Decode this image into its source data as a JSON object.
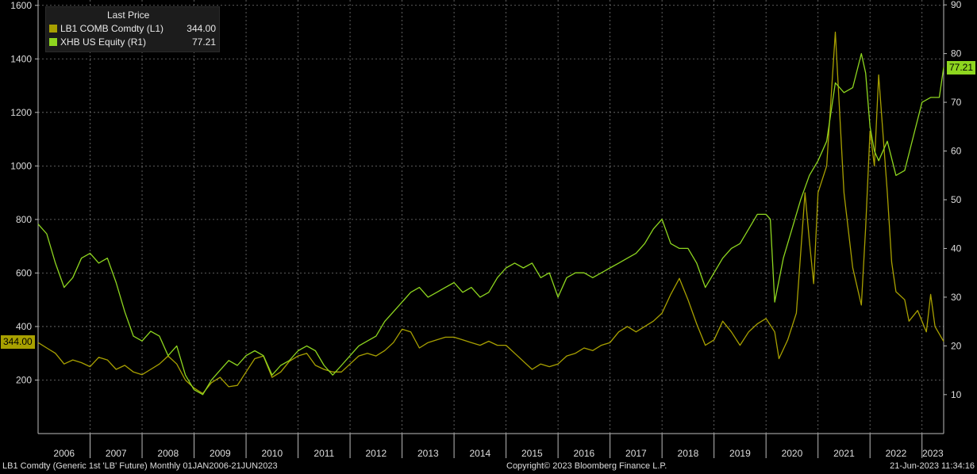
{
  "legend": {
    "header": "Last Price",
    "items": [
      {
        "name": "LB1 COMB Comdty  (L1)",
        "value": "344.00",
        "color": "#a8a000"
      },
      {
        "name": "XHB US Equity  (R1)",
        "value": "77.21",
        "color": "#8ed61f"
      }
    ]
  },
  "last_value_tags": {
    "left": "344.00",
    "right": "77.21"
  },
  "footer": {
    "left": "LB1 Comdty (Generic 1st 'LB' Future)  Monthly 01JAN2006-21JUN2023",
    "center": "Copyright© 2023 Bloomberg Finance L.P.",
    "right": "21-Jun-2023 11:34:16"
  },
  "chart_data": {
    "type": "line",
    "x_ticks": [
      "2006",
      "2007",
      "2008",
      "2009",
      "2010",
      "2011",
      "2012",
      "2013",
      "2014",
      "2015",
      "2016",
      "2017",
      "2018",
      "2019",
      "2020",
      "2021",
      "2022",
      "2023"
    ],
    "x_range": [
      "2006-01",
      "2023-06"
    ],
    "left_axis": {
      "ticks": [
        200,
        400,
        600,
        800,
        1000,
        1200,
        1400,
        1600
      ],
      "range": [
        0,
        1620
      ]
    },
    "right_axis": {
      "ticks": [
        10,
        20,
        30,
        40,
        50,
        60,
        70,
        80,
        90
      ],
      "range": [
        2,
        91
      ]
    },
    "grid": true,
    "legend_position": "top-left",
    "series": [
      {
        "name": "LB1 COMB Comdty",
        "axis": "left",
        "color": "#a8a000",
        "points": [
          [
            "2006-01",
            340
          ],
          [
            "2006-03",
            320
          ],
          [
            "2006-05",
            300
          ],
          [
            "2006-07",
            260
          ],
          [
            "2006-09",
            275
          ],
          [
            "2006-11",
            265
          ],
          [
            "2007-01",
            250
          ],
          [
            "2007-03",
            285
          ],
          [
            "2007-05",
            275
          ],
          [
            "2007-07",
            240
          ],
          [
            "2007-09",
            255
          ],
          [
            "2007-11",
            230
          ],
          [
            "2008-01",
            220
          ],
          [
            "2008-03",
            240
          ],
          [
            "2008-05",
            260
          ],
          [
            "2008-07",
            290
          ],
          [
            "2008-09",
            260
          ],
          [
            "2008-11",
            200
          ],
          [
            "2009-01",
            170
          ],
          [
            "2009-03",
            150
          ],
          [
            "2009-05",
            190
          ],
          [
            "2009-07",
            210
          ],
          [
            "2009-09",
            175
          ],
          [
            "2009-11",
            180
          ],
          [
            "2010-01",
            230
          ],
          [
            "2010-03",
            280
          ],
          [
            "2010-05",
            290
          ],
          [
            "2010-07",
            210
          ],
          [
            "2010-09",
            230
          ],
          [
            "2010-11",
            270
          ],
          [
            "2011-01",
            290
          ],
          [
            "2011-03",
            300
          ],
          [
            "2011-05",
            255
          ],
          [
            "2011-07",
            240
          ],
          [
            "2011-09",
            230
          ],
          [
            "2011-11",
            230
          ],
          [
            "2012-01",
            260
          ],
          [
            "2012-03",
            290
          ],
          [
            "2012-05",
            300
          ],
          [
            "2012-07",
            290
          ],
          [
            "2012-09",
            310
          ],
          [
            "2012-11",
            340
          ],
          [
            "2013-01",
            390
          ],
          [
            "2013-03",
            380
          ],
          [
            "2013-05",
            320
          ],
          [
            "2013-07",
            340
          ],
          [
            "2013-09",
            350
          ],
          [
            "2013-11",
            360
          ],
          [
            "2014-01",
            360
          ],
          [
            "2014-03",
            350
          ],
          [
            "2014-05",
            340
          ],
          [
            "2014-07",
            330
          ],
          [
            "2014-09",
            345
          ],
          [
            "2014-11",
            330
          ],
          [
            "2015-01",
            330
          ],
          [
            "2015-03",
            300
          ],
          [
            "2015-05",
            270
          ],
          [
            "2015-07",
            240
          ],
          [
            "2015-09",
            260
          ],
          [
            "2015-11",
            250
          ],
          [
            "2016-01",
            260
          ],
          [
            "2016-03",
            290
          ],
          [
            "2016-05",
            300
          ],
          [
            "2016-07",
            320
          ],
          [
            "2016-09",
            310
          ],
          [
            "2016-11",
            330
          ],
          [
            "2017-01",
            340
          ],
          [
            "2017-03",
            380
          ],
          [
            "2017-05",
            400
          ],
          [
            "2017-07",
            380
          ],
          [
            "2017-09",
            400
          ],
          [
            "2017-11",
            420
          ],
          [
            "2018-01",
            450
          ],
          [
            "2018-03",
            520
          ],
          [
            "2018-05",
            580
          ],
          [
            "2018-07",
            500
          ],
          [
            "2018-09",
            410
          ],
          [
            "2018-11",
            330
          ],
          [
            "2019-01",
            350
          ],
          [
            "2019-03",
            420
          ],
          [
            "2019-05",
            380
          ],
          [
            "2019-07",
            330
          ],
          [
            "2019-09",
            380
          ],
          [
            "2019-11",
            410
          ],
          [
            "2020-01",
            430
          ],
          [
            "2020-03",
            380
          ],
          [
            "2020-04",
            280
          ],
          [
            "2020-06",
            350
          ],
          [
            "2020-08",
            450
          ],
          [
            "2020-10",
            900
          ],
          [
            "2020-11",
            720
          ],
          [
            "2020-12",
            560
          ],
          [
            "2021-01",
            900
          ],
          [
            "2021-03",
            1000
          ],
          [
            "2021-05",
            1500
          ],
          [
            "2021-07",
            900
          ],
          [
            "2021-09",
            620
          ],
          [
            "2021-11",
            480
          ],
          [
            "2021-12",
            770
          ],
          [
            "2022-01",
            1130
          ],
          [
            "2022-02",
            1000
          ],
          [
            "2022-03",
            1340
          ],
          [
            "2022-05",
            900
          ],
          [
            "2022-06",
            640
          ],
          [
            "2022-07",
            530
          ],
          [
            "2022-09",
            500
          ],
          [
            "2022-10",
            420
          ],
          [
            "2022-12",
            460
          ],
          [
            "2023-02",
            380
          ],
          [
            "2023-03",
            520
          ],
          [
            "2023-04",
            400
          ],
          [
            "2023-06",
            344
          ]
        ]
      },
      {
        "name": "XHB US Equity",
        "axis": "right",
        "color": "#8ed61f",
        "points": [
          [
            "2006-01",
            45
          ],
          [
            "2006-03",
            43
          ],
          [
            "2006-05",
            37
          ],
          [
            "2006-07",
            32
          ],
          [
            "2006-09",
            34
          ],
          [
            "2006-11",
            38
          ],
          [
            "2007-01",
            39
          ],
          [
            "2007-03",
            37
          ],
          [
            "2007-05",
            38
          ],
          [
            "2007-07",
            33
          ],
          [
            "2007-09",
            27
          ],
          [
            "2007-11",
            22
          ],
          [
            "2008-01",
            21
          ],
          [
            "2008-03",
            23
          ],
          [
            "2008-05",
            22
          ],
          [
            "2008-07",
            18
          ],
          [
            "2008-09",
            20
          ],
          [
            "2008-11",
            14
          ],
          [
            "2009-01",
            11
          ],
          [
            "2009-03",
            10
          ],
          [
            "2009-05",
            13
          ],
          [
            "2009-07",
            15
          ],
          [
            "2009-09",
            17
          ],
          [
            "2009-11",
            16
          ],
          [
            "2010-01",
            18
          ],
          [
            "2010-03",
            19
          ],
          [
            "2010-05",
            18
          ],
          [
            "2010-07",
            14
          ],
          [
            "2010-09",
            16
          ],
          [
            "2010-11",
            17
          ],
          [
            "2011-01",
            19
          ],
          [
            "2011-03",
            20
          ],
          [
            "2011-05",
            19
          ],
          [
            "2011-07",
            16
          ],
          [
            "2011-09",
            14
          ],
          [
            "2011-11",
            16
          ],
          [
            "2012-01",
            18
          ],
          [
            "2012-03",
            20
          ],
          [
            "2012-05",
            21
          ],
          [
            "2012-07",
            22
          ],
          [
            "2012-09",
            25
          ],
          [
            "2012-11",
            27
          ],
          [
            "2013-01",
            29
          ],
          [
            "2013-03",
            31
          ],
          [
            "2013-05",
            32
          ],
          [
            "2013-07",
            30
          ],
          [
            "2013-09",
            31
          ],
          [
            "2013-11",
            32
          ],
          [
            "2014-01",
            33
          ],
          [
            "2014-03",
            31
          ],
          [
            "2014-05",
            32
          ],
          [
            "2014-07",
            30
          ],
          [
            "2014-09",
            31
          ],
          [
            "2014-11",
            34
          ],
          [
            "2015-01",
            36
          ],
          [
            "2015-03",
            37
          ],
          [
            "2015-05",
            36
          ],
          [
            "2015-07",
            37
          ],
          [
            "2015-09",
            34
          ],
          [
            "2015-11",
            35
          ],
          [
            "2016-01",
            30
          ],
          [
            "2016-03",
            34
          ],
          [
            "2016-05",
            35
          ],
          [
            "2016-07",
            35
          ],
          [
            "2016-09",
            34
          ],
          [
            "2016-11",
            35
          ],
          [
            "2017-01",
            36
          ],
          [
            "2017-03",
            37
          ],
          [
            "2017-05",
            38
          ],
          [
            "2017-07",
            39
          ],
          [
            "2017-09",
            41
          ],
          [
            "2017-11",
            44
          ],
          [
            "2018-01",
            46
          ],
          [
            "2018-03",
            41
          ],
          [
            "2018-05",
            40
          ],
          [
            "2018-07",
            40
          ],
          [
            "2018-09",
            37
          ],
          [
            "2018-11",
            32
          ],
          [
            "2019-01",
            35
          ],
          [
            "2019-03",
            38
          ],
          [
            "2019-05",
            40
          ],
          [
            "2019-07",
            41
          ],
          [
            "2019-09",
            44
          ],
          [
            "2019-11",
            47
          ],
          [
            "2020-01",
            47
          ],
          [
            "2020-02",
            46
          ],
          [
            "2020-03",
            29
          ],
          [
            "2020-05",
            38
          ],
          [
            "2020-07",
            44
          ],
          [
            "2020-09",
            50
          ],
          [
            "2020-11",
            55
          ],
          [
            "2021-01",
            58
          ],
          [
            "2021-03",
            62
          ],
          [
            "2021-05",
            74
          ],
          [
            "2021-07",
            72
          ],
          [
            "2021-09",
            73
          ],
          [
            "2021-11",
            80
          ],
          [
            "2021-12",
            76
          ],
          [
            "2022-01",
            65
          ],
          [
            "2022-02",
            60
          ],
          [
            "2022-03",
            58
          ],
          [
            "2022-05",
            62
          ],
          [
            "2022-07",
            55
          ],
          [
            "2022-09",
            56
          ],
          [
            "2022-11",
            63
          ],
          [
            "2023-01",
            70
          ],
          [
            "2023-03",
            71
          ],
          [
            "2023-05",
            71
          ],
          [
            "2023-06",
            77.21
          ]
        ]
      }
    ]
  }
}
